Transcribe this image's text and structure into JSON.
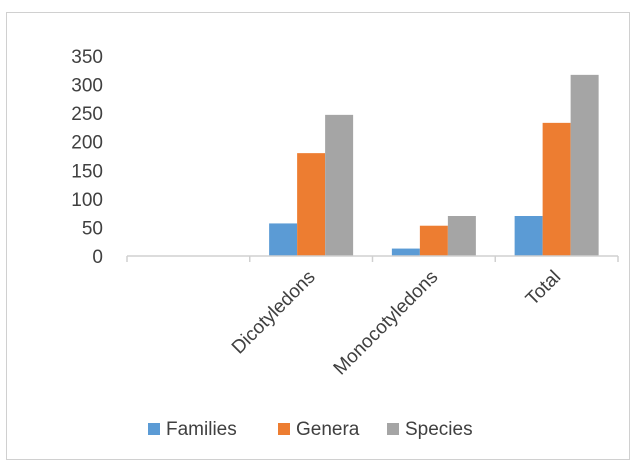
{
  "chart_data": {
    "type": "bar",
    "categories": [
      "",
      "Dicotyledons",
      "Monocotyledons",
      "Total"
    ],
    "series": [
      {
        "name": "Families",
        "color": "#5B9BD5",
        "values": [
          0,
          57,
          13,
          70
        ]
      },
      {
        "name": "Genera",
        "color": "#ED7D31",
        "values": [
          0,
          180,
          53,
          233
        ]
      },
      {
        "name": "Species",
        "color": "#A5A5A5",
        "values": [
          0,
          247,
          70,
          317
        ]
      }
    ],
    "yticks": [
      "0",
      "50",
      "100",
      "150",
      "200",
      "250",
      "300",
      "350"
    ],
    "ylim": [
      0,
      350
    ],
    "grid": false,
    "legend_position": "bottom",
    "title": "",
    "xlabel": "",
    "ylabel": ""
  }
}
